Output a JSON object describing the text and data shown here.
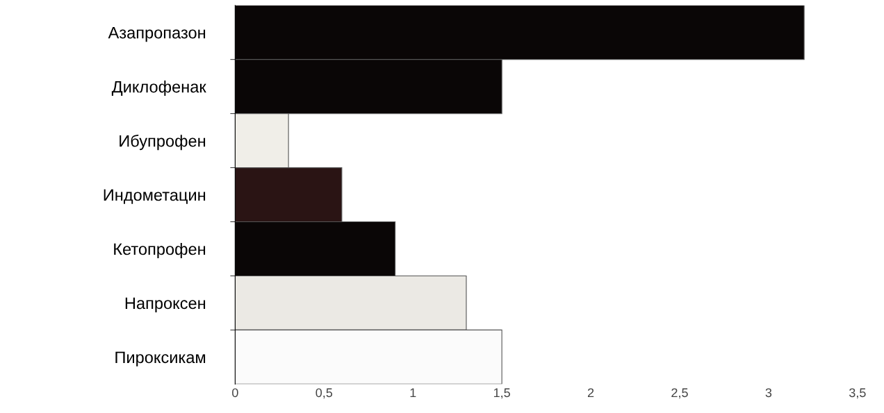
{
  "chart_data": {
    "type": "bar",
    "orientation": "horizontal",
    "categories": [
      "Азапропазон",
      "Диклофенак",
      "Ибупрофен",
      "Индометацин",
      "Кетопрофен",
      "Напроксен",
      "Пироксикам"
    ],
    "values": [
      3.2,
      1.5,
      0.3,
      0.6,
      0.9,
      1.3,
      1.5
    ],
    "colors": [
      "#0a0606",
      "#0a0606",
      "#f0eee8",
      "#2a1414",
      "#0a0606",
      "#ebe9e4",
      "#fbfbfb"
    ],
    "xlim": [
      0,
      3.5
    ],
    "xticks": [
      0,
      {
        "value": 0.5,
        "label": "0,5"
      },
      1,
      {
        "value": 1.5,
        "label": "1,5"
      },
      2,
      {
        "value": 2.5,
        "label": "2,5"
      },
      3,
      {
        "value": 3.5,
        "label": "3,5"
      }
    ],
    "grid": false,
    "legend": false
  }
}
